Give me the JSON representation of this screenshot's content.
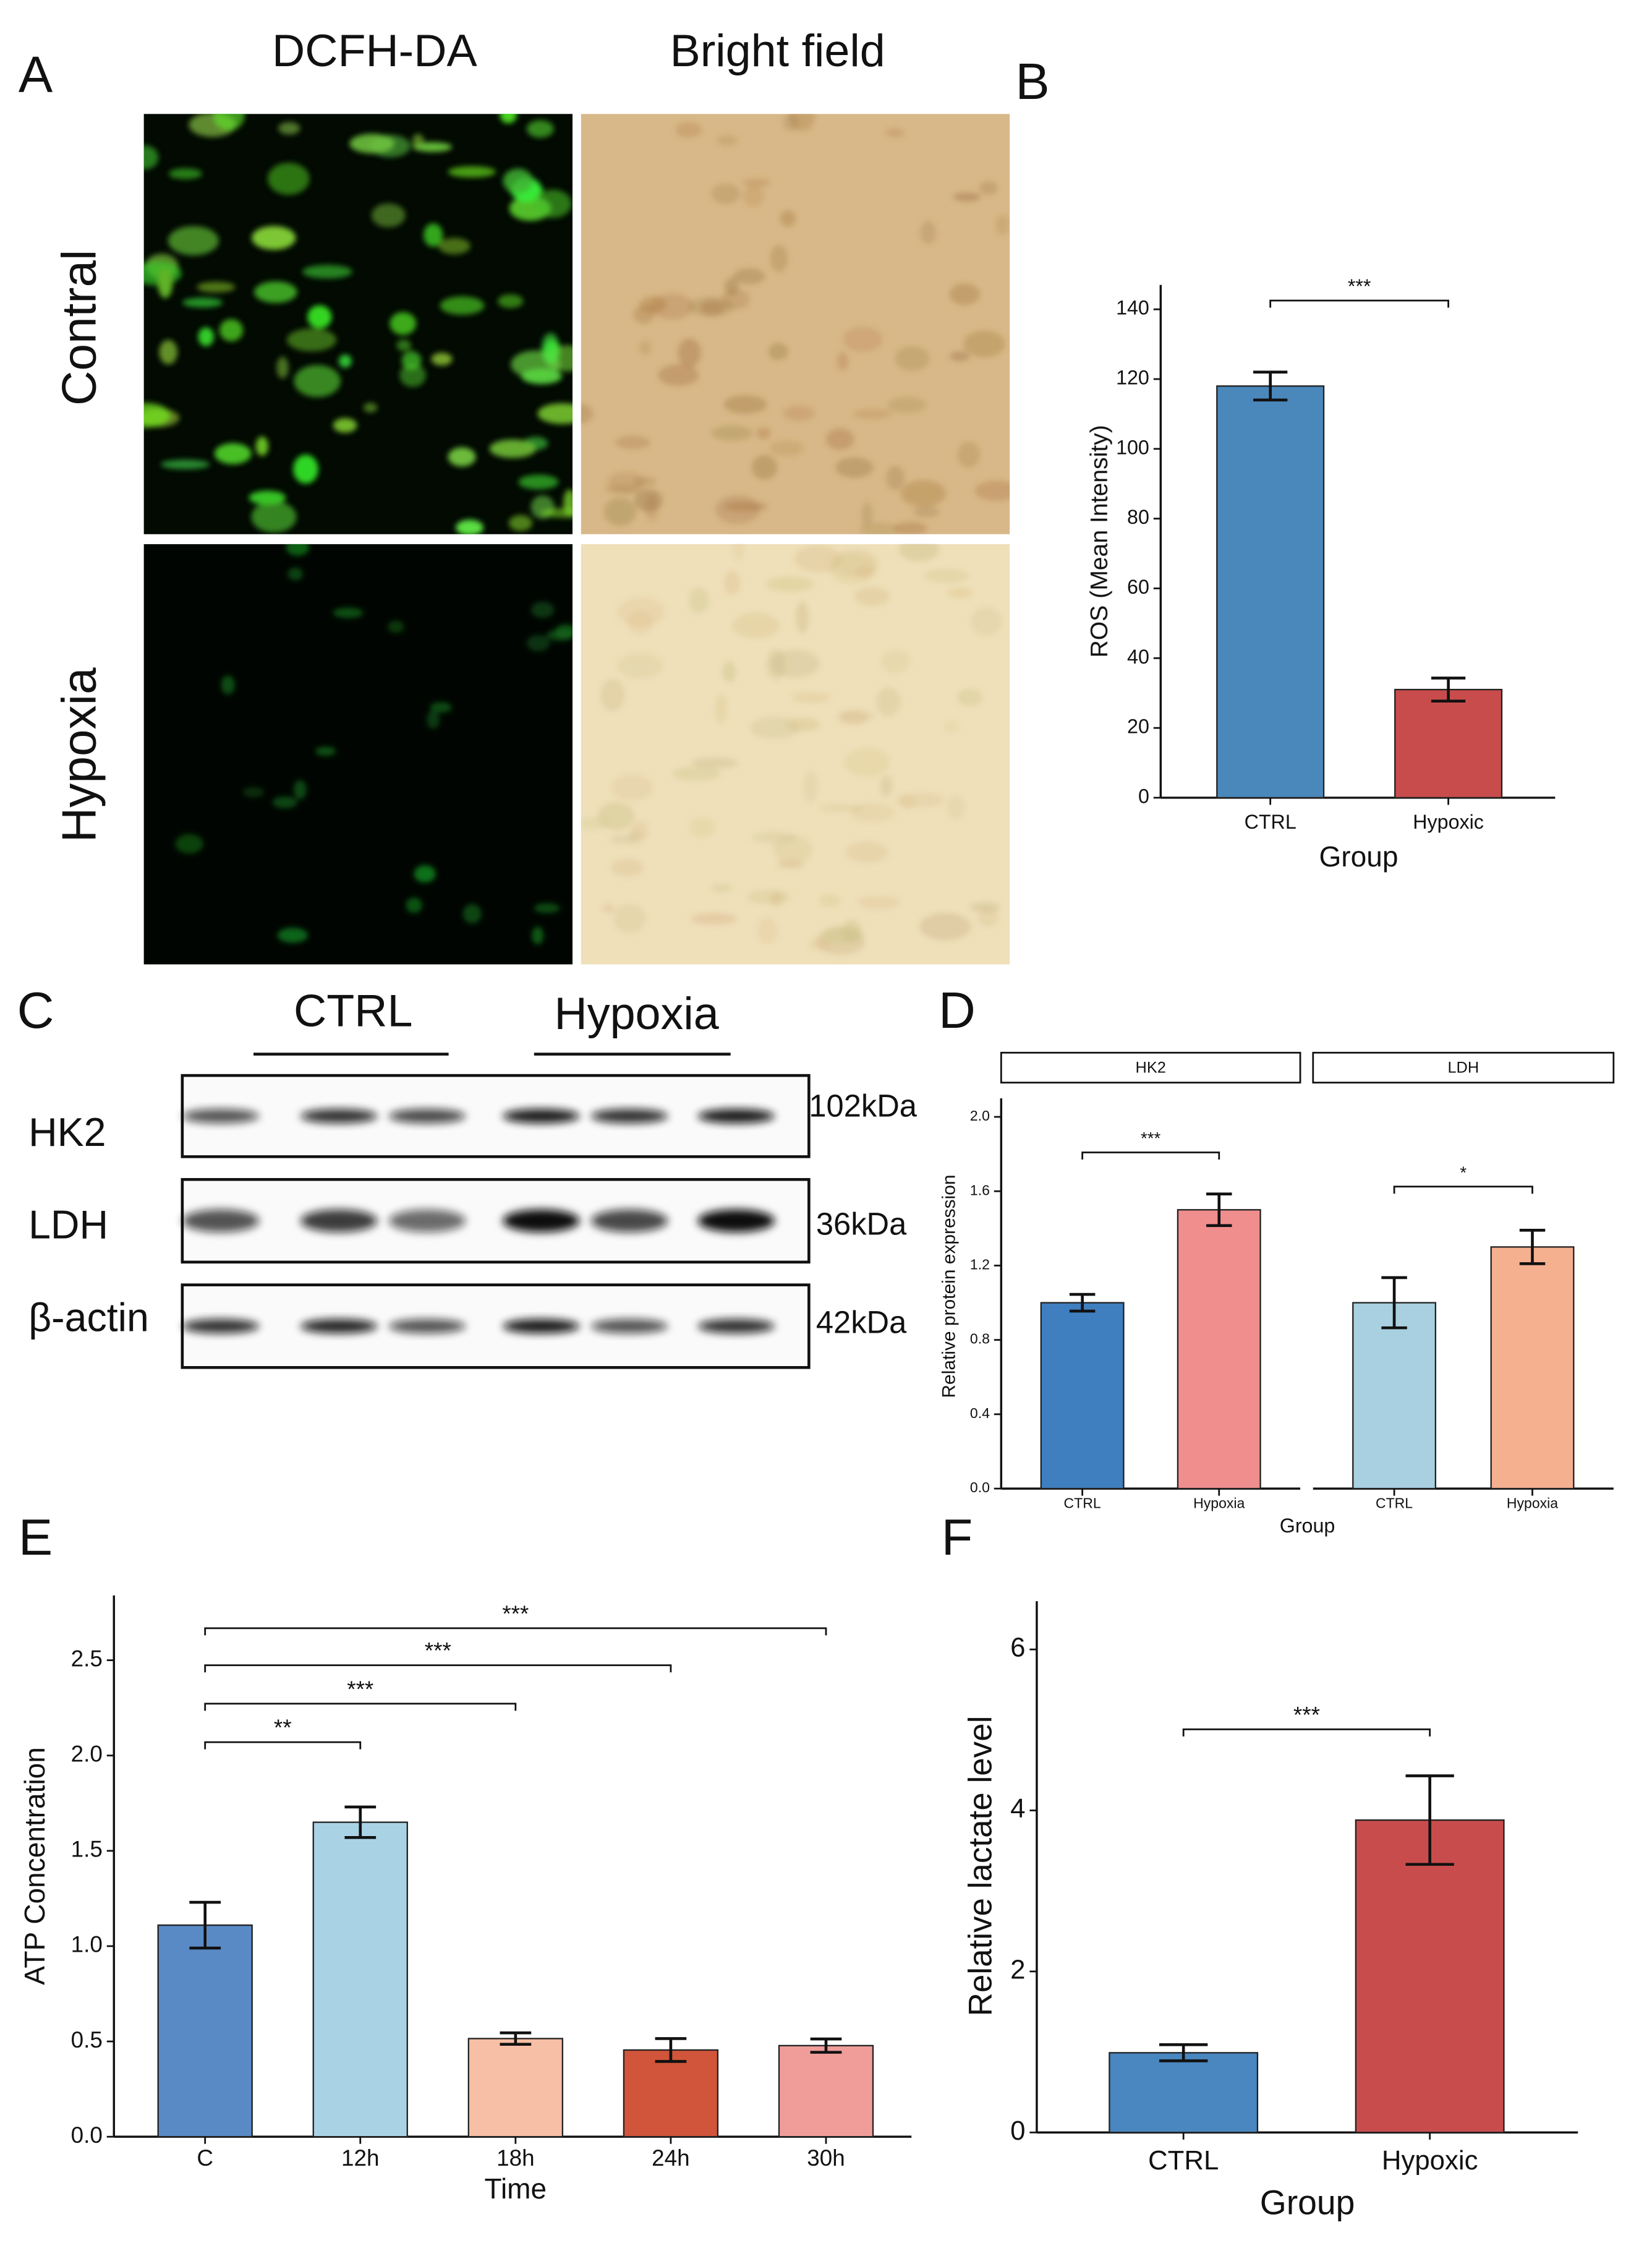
{
  "panel_labels": {
    "a": "A",
    "b": "B",
    "c": "C",
    "d": "D",
    "e": "E",
    "f": "F"
  },
  "panel_a": {
    "columns": [
      "DCFH-DA",
      "Bright field"
    ],
    "rows": [
      "Contral",
      "Hypoxia"
    ]
  },
  "panel_c": {
    "groups": [
      "CTRL",
      "Hypoxia"
    ],
    "bands": [
      {
        "protein": "HK2",
        "size": "102kDa"
      },
      {
        "protein": "LDH",
        "size": "36kDa"
      },
      {
        "protein": "β-actin",
        "size": "42kDa"
      }
    ]
  },
  "chart_data": [
    {
      "type": "bar",
      "x_label": "Group",
      "y_label": "ROS (Mean Intensity)",
      "categories": [
        "CTRL",
        "Hypoxic"
      ],
      "values": [
        118,
        31
      ],
      "errors": [
        4,
        3.3
      ],
      "colors": [
        "#4a88bb",
        "#c94c4c"
      ],
      "ylim": [
        0,
        147
      ],
      "yticks": [
        0,
        20,
        40,
        60,
        80,
        100,
        120,
        140
      ],
      "significance": [
        {
          "pair": [
            "CTRL",
            "Hypoxic"
          ],
          "label": "***"
        }
      ]
    },
    {
      "type": "facet_bar",
      "x_label": "Group",
      "y_label": "Relative protein expression",
      "ylim": [
        0,
        2.1
      ],
      "yticks": [
        {
          "value": 0,
          "label": "0.0"
        },
        0.4,
        0.8,
        1.2,
        1.6,
        {
          "value": 2,
          "label": "2.0"
        }
      ],
      "facets": [
        {
          "title": "HK2",
          "categories": [
            "CTRL",
            "Hypoxia"
          ],
          "values": [
            1.0,
            1.5
          ],
          "errors": [
            0.045,
            0.085
          ],
          "colors": [
            "#3f7fbf",
            "#f08e8e"
          ],
          "significance": [
            {
              "pair": [
                "CTRL",
                "Hypoxia"
              ],
              "label": "***"
            }
          ]
        },
        {
          "title": "LDH",
          "categories": [
            "CTRL",
            "Hypoxia"
          ],
          "values": [
            1.0,
            1.3
          ],
          "errors": [
            0.135,
            0.09
          ],
          "colors": [
            "#a8d0e0",
            "#f5b090"
          ],
          "significance": [
            {
              "pair": [
                "CTRL",
                "Hypoxia"
              ],
              "label": "*"
            }
          ]
        }
      ]
    },
    {
      "type": "bar",
      "x_label": "Time",
      "y_label": "ATP Concentration",
      "categories": [
        "C",
        "12h",
        "18h",
        "24h",
        "30h"
      ],
      "values": [
        1.11,
        1.65,
        0.515,
        0.455,
        0.478
      ],
      "errors": [
        0.12,
        0.08,
        0.03,
        0.06,
        0.035
      ],
      "colors": [
        "#5a8ac6",
        "#a9d3e5",
        "#f7bfa5",
        "#d0553a",
        "#f09d9a"
      ],
      "ylim": [
        0,
        2.84
      ],
      "yticks": [
        {
          "value": 0,
          "label": "0.0"
        },
        0.5,
        {
          "value": 1,
          "label": "1.0"
        },
        1.5,
        {
          "value": 2,
          "label": "2.0"
        },
        2.5
      ],
      "significance": [
        {
          "pair": [
            "C",
            "12h"
          ],
          "label": "**"
        },
        {
          "pair": [
            "C",
            "18h"
          ],
          "label": "***"
        },
        {
          "pair": [
            "C",
            "24h"
          ],
          "label": "***"
        },
        {
          "pair": [
            "C",
            "30h"
          ],
          "label": "***"
        }
      ]
    },
    {
      "type": "bar",
      "x_label": "Group",
      "y_label": "Relative lactate level",
      "categories": [
        "CTRL",
        "Hypoxic"
      ],
      "values": [
        0.99,
        3.88
      ],
      "errors": [
        0.1,
        0.55
      ],
      "colors": [
        "#4a86bf",
        "#c94c4c"
      ],
      "ylim": [
        0,
        6.6
      ],
      "yticks": [
        0,
        2,
        4,
        6
      ],
      "significance": [
        {
          "pair": [
            "CTRL",
            "Hypoxic"
          ],
          "label": "***"
        }
      ]
    }
  ]
}
